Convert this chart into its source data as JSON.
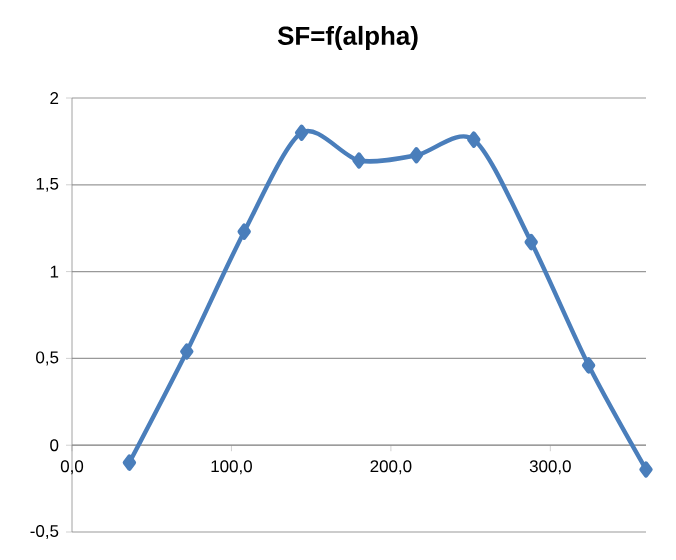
{
  "chart_data": {
    "type": "line",
    "title": "SF=f(alpha)",
    "x": [
      36,
      72,
      108,
      144,
      180,
      216,
      252,
      288,
      324,
      360
    ],
    "series": [
      {
        "color": "#4a7ebb",
        "values": [
          -0.1,
          0.54,
          1.23,
          1.8,
          1.64,
          1.67,
          1.76,
          1.17,
          0.46,
          -0.14
        ]
      }
    ],
    "xlim": [
      0,
      360
    ],
    "xticks": [
      {
        "value": 0,
        "label": "0,0"
      },
      {
        "value": 100,
        "label": "100,0"
      },
      {
        "value": 200,
        "label": "200,0"
      },
      {
        "value": 300,
        "label": "300,0"
      }
    ],
    "ylim": [
      -0.5,
      2
    ],
    "yticks": [
      {
        "value": -0.5,
        "label": "-0,5"
      },
      0,
      {
        "value": 0.5,
        "label": "0,5"
      },
      1,
      {
        "value": 1.5,
        "label": "1,5"
      },
      2
    ],
    "grid": "y",
    "marker": "diamond",
    "line_style": "solid"
  }
}
